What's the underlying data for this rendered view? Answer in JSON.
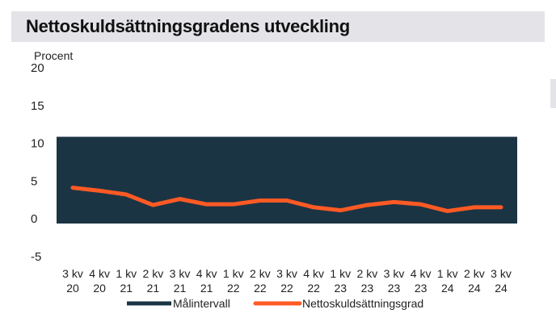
{
  "chart_data": {
    "type": "line",
    "title": "Nettoskuldsättningsgradens utveckling",
    "ylabel": "Procent",
    "ylim": [
      -5,
      20
    ],
    "yticks": [
      20,
      15,
      10,
      5,
      0,
      -5
    ],
    "categories": [
      [
        "3 kv",
        "20"
      ],
      [
        "4 kv",
        "20"
      ],
      [
        "1 kv",
        "21"
      ],
      [
        "2 kv",
        "21"
      ],
      [
        "3 kv",
        "21"
      ],
      [
        "4 kv",
        "21"
      ],
      [
        "1 kv",
        "22"
      ],
      [
        "2 kv",
        "22"
      ],
      [
        "3 kv",
        "22"
      ],
      [
        "4 kv",
        "22"
      ],
      [
        "1 kv",
        "23"
      ],
      [
        "2 kv",
        "23"
      ],
      [
        "3 kv",
        "23"
      ],
      [
        "4 kv",
        "23"
      ],
      [
        "1 kv",
        "24"
      ],
      [
        "2 kv",
        "24"
      ],
      [
        "3 kv",
        "24"
      ]
    ],
    "target_range": {
      "name": "Målintervall",
      "low": 0,
      "high": 10,
      "color": "#1b3444"
    },
    "series": [
      {
        "name": "Nettoskuldsättningsgrad",
        "color": "#ff5a24",
        "values": [
          4.0,
          3.6,
          3.1,
          1.7,
          2.5,
          1.8,
          1.8,
          2.3,
          2.3,
          1.4,
          1.0,
          1.7,
          2.1,
          1.8,
          0.9,
          1.4,
          1.4
        ]
      }
    ],
    "legend": "bottom"
  }
}
